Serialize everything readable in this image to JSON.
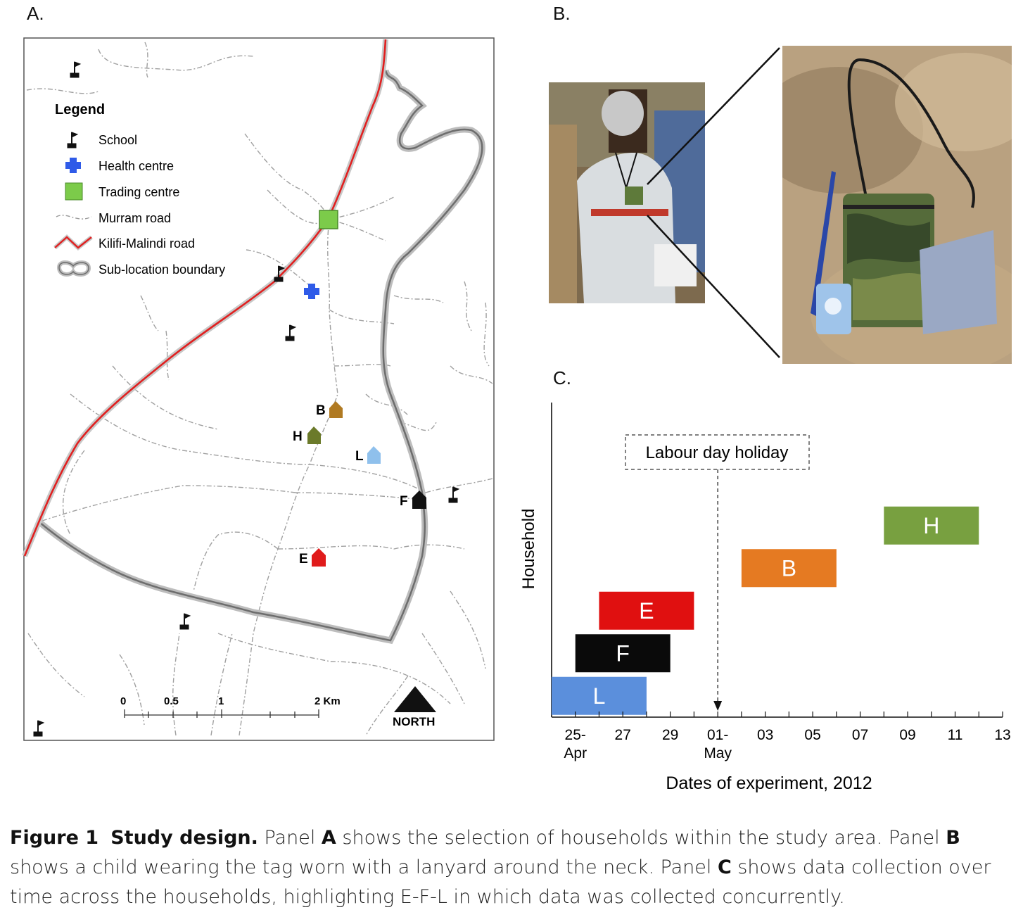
{
  "panels": {
    "a_label": "A.",
    "b_label": "B.",
    "c_label": "C."
  },
  "map": {
    "legend": {
      "title": "Legend",
      "items": [
        {
          "label": "School",
          "icon": "school-flag-icon"
        },
        {
          "label": "Health centre",
          "icon": "health-cross-icon",
          "color": "#2f5be8"
        },
        {
          "label": "Trading centre",
          "icon": "trading-square-icon",
          "color": "#7ccb4a"
        },
        {
          "label": "Murram road",
          "icon": "murram-road-icon",
          "color": "#9a9a9a"
        },
        {
          "label": "Kilifi-Malindi road",
          "icon": "main-road-icon",
          "color": "#e02020"
        },
        {
          "label": "Sub-location boundary",
          "icon": "boundary-icon",
          "color": "#a8a8a8"
        }
      ]
    },
    "households": [
      {
        "id": "B",
        "color": "#b07a22"
      },
      {
        "id": "H",
        "color": "#6b7a2a"
      },
      {
        "id": "L",
        "color": "#8fc0ec"
      },
      {
        "id": "F",
        "color": "#111111"
      },
      {
        "id": "E",
        "color": "#e01b1b"
      }
    ],
    "scale": {
      "ticks": [
        "0",
        "0.5",
        "1",
        "2 Km"
      ]
    },
    "north_label": "NORTH"
  },
  "chart_data": {
    "type": "gantt",
    "title": "",
    "xlabel": "Dates of experiment, 2012",
    "ylabel": "Household",
    "x_ticks": [
      "25-Apr",
      "27",
      "29",
      "01-May",
      "03",
      "05",
      "07",
      "09",
      "11",
      "13"
    ],
    "xlim": [
      "2012-04-24",
      "2012-05-13"
    ],
    "annotation": {
      "text": "Labour day holiday",
      "date": "2012-05-01"
    },
    "bars": [
      {
        "label": "L",
        "start": "2012-04-24",
        "end": "2012-04-28",
        "color": "#5b8fdc"
      },
      {
        "label": "F",
        "start": "2012-04-25",
        "end": "2012-04-29",
        "color": "#0a0a0a"
      },
      {
        "label": "E",
        "start": "2012-04-26",
        "end": "2012-04-30",
        "color": "#e01010"
      },
      {
        "label": "B",
        "start": "2012-05-02",
        "end": "2012-05-06",
        "color": "#e57a22"
      },
      {
        "label": "H",
        "start": "2012-05-08",
        "end": "2012-05-12",
        "color": "#78a040"
      }
    ]
  },
  "caption": {
    "figure": "Figure 1",
    "title": "Study design.",
    "text_1": " Panel ",
    "a": "A",
    "text_2": " shows the selection of households within the study area. Panel ",
    "b": "B",
    "text_3": " shows a child wearing the tag worn with a lanyard around the neck. Panel ",
    "c": "C",
    "text_4": " shows data collection over time across the households, highlighting E-F-L in which data was collected concurrently."
  }
}
